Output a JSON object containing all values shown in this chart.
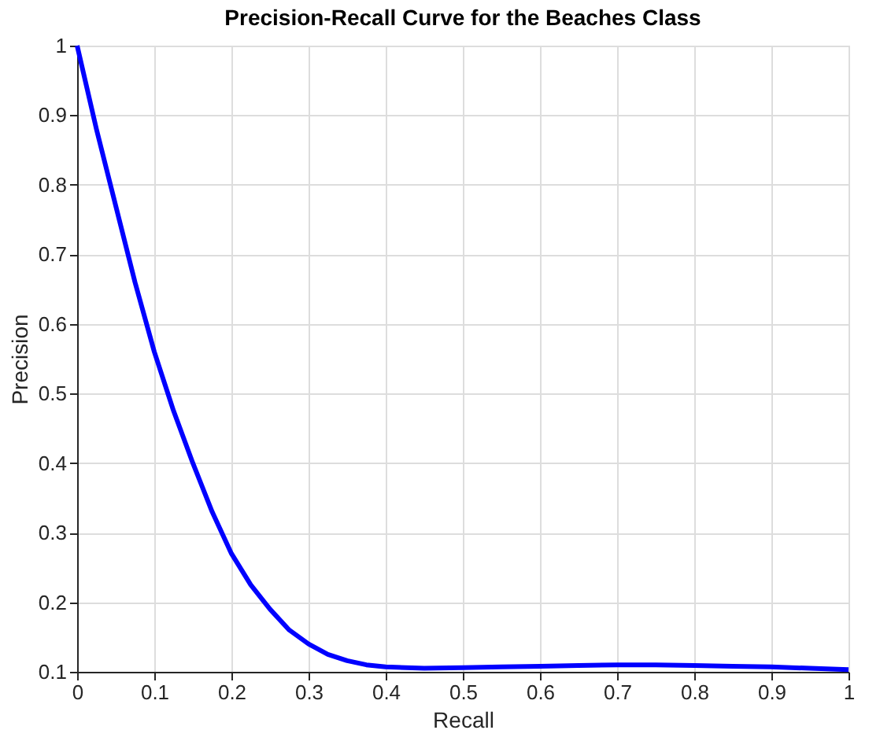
{
  "chart_data": {
    "type": "line",
    "title": "Precision-Recall Curve for the Beaches Class",
    "xlabel": "Recall",
    "ylabel": "Precision",
    "x": [
      0,
      0.025,
      0.05,
      0.075,
      0.1,
      0.125,
      0.15,
      0.175,
      0.2,
      0.225,
      0.25,
      0.275,
      0.3,
      0.325,
      0.35,
      0.375,
      0.4,
      0.45,
      0.5,
      0.55,
      0.6,
      0.65,
      0.7,
      0.75,
      0.8,
      0.85,
      0.9,
      0.95,
      1.0
    ],
    "series": [
      {
        "color": "#0000ff",
        "values": [
          1.0,
          0.88,
          0.77,
          0.66,
          0.56,
          0.475,
          0.4,
          0.33,
          0.27,
          0.225,
          0.19,
          0.16,
          0.14,
          0.125,
          0.116,
          0.11,
          0.107,
          0.105,
          0.106,
          0.107,
          0.108,
          0.109,
          0.11,
          0.11,
          0.109,
          0.108,
          0.107,
          0.105,
          0.103
        ]
      }
    ],
    "xlim": [
      0,
      1
    ],
    "ylim": [
      0.1,
      1
    ],
    "xticks": [
      0,
      0.1,
      0.2,
      0.3,
      0.4,
      0.5,
      0.6,
      0.7,
      0.8,
      0.9,
      1
    ],
    "yticks": [
      0.1,
      0.2,
      0.3,
      0.4,
      0.5,
      0.6,
      0.7,
      0.8,
      0.9,
      1
    ],
    "grid": true,
    "marker": "none",
    "line_style": "solid"
  }
}
